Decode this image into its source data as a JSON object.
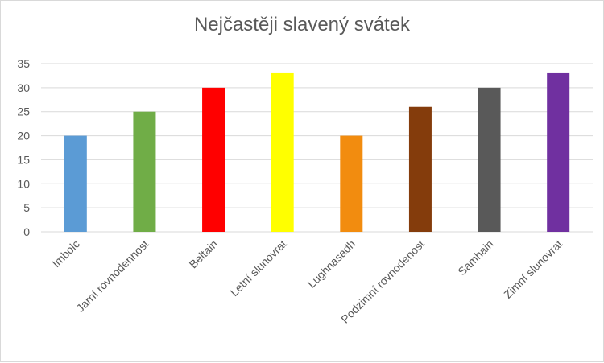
{
  "chart_data": {
    "type": "bar",
    "title": "Nejčastěji slavený svátek",
    "xlabel": "",
    "ylabel": "",
    "categories": [
      "Imbolc",
      "Jarní rovnodennost",
      "Beltain",
      "Letní slunovrat",
      "Lughnasadh",
      "Podzimní rovnodenost",
      "Samhain",
      "Zimní slunovrat"
    ],
    "values": [
      20,
      25,
      30,
      33,
      20,
      26,
      30,
      33
    ],
    "colors": [
      "#5b9bd5",
      "#70ad47",
      "#ff0000",
      "#ffff00",
      "#f28c0f",
      "#843c0c",
      "#595959",
      "#7030a0"
    ],
    "ylim": [
      0,
      35
    ],
    "yticks": [
      0,
      5,
      10,
      15,
      20,
      25,
      30,
      35
    ],
    "grid": true,
    "legend": "none"
  }
}
